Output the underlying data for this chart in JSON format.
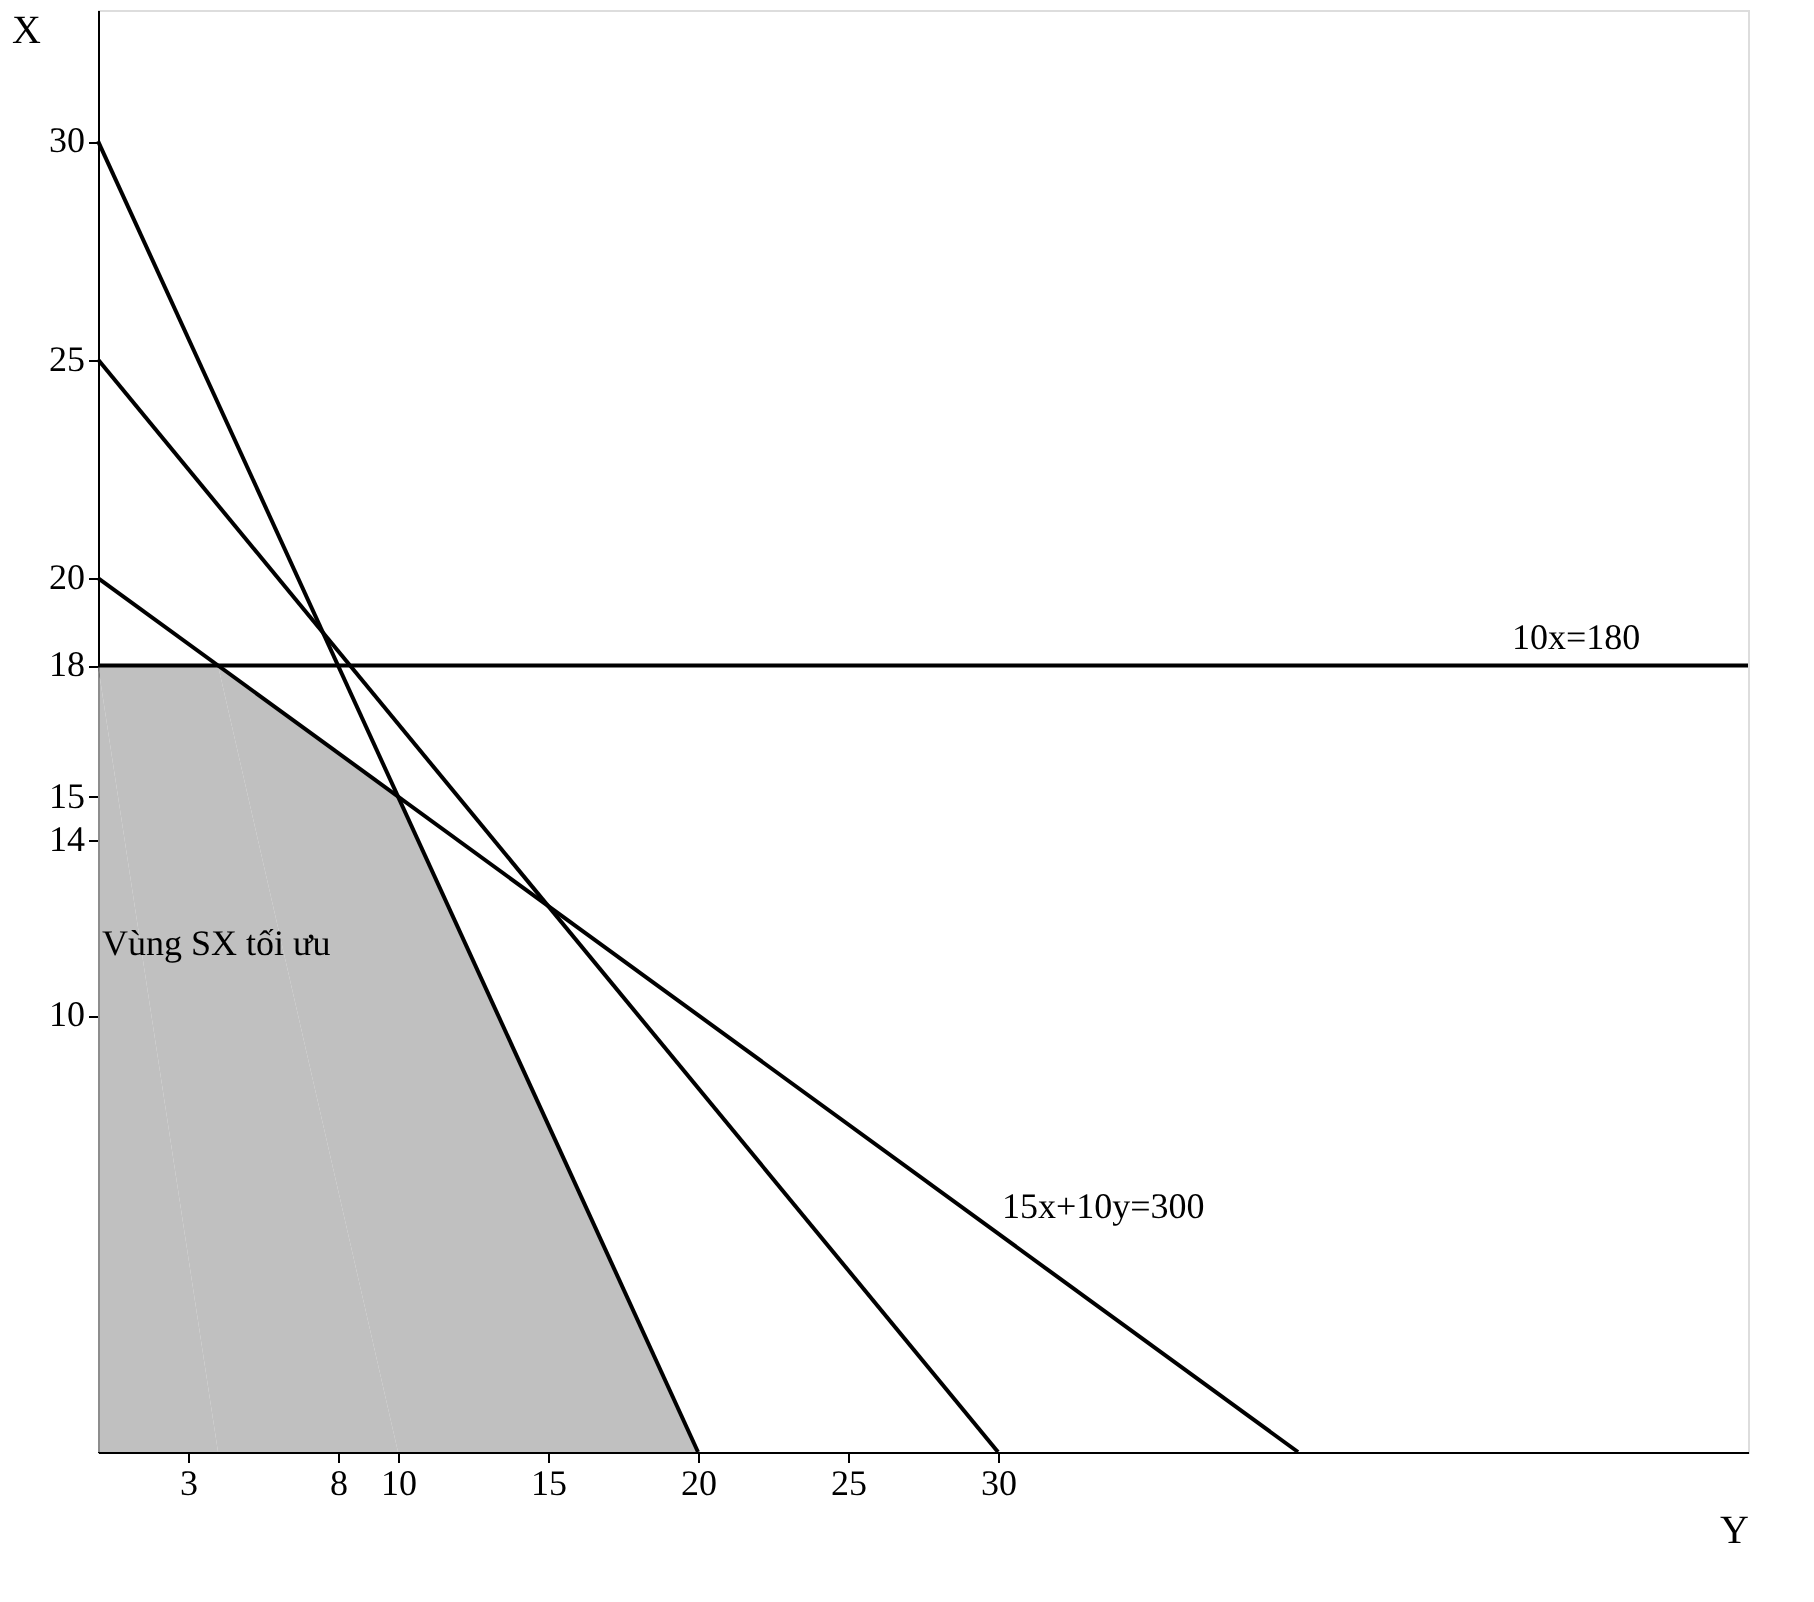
{
  "chart_data": {
    "type": "line",
    "xlabel": "Y",
    "ylabel": "X",
    "xlim": [
      0,
      55
    ],
    "ylim": [
      0,
      33
    ],
    "xticks": [
      3,
      8,
      10,
      15,
      20,
      25,
      30
    ],
    "yticks": [
      10,
      14,
      15,
      18,
      20,
      25,
      30
    ],
    "marker": "none",
    "line_style": "solid",
    "series": [
      {
        "type": "area",
        "color": "#b0b0b0",
        "x": [
          0,
          4,
          10,
          20
        ],
        "values": [
          18,
          18,
          15,
          0
        ]
      },
      {
        "color": "#000000",
        "x": [
          0,
          20
        ],
        "values": [
          30,
          0
        ]
      },
      {
        "color": "#000000",
        "x": [
          0,
          30
        ],
        "values": [
          25,
          0
        ]
      },
      {
        "color": "#000000",
        "x": [
          0,
          40
        ],
        "values": [
          20,
          0
        ]
      },
      {
        "color": "#000000",
        "x": [
          0,
          55
        ],
        "values": [
          18,
          18
        ]
      }
    ],
    "annotations": [
      {
        "text": "10x=180",
        "x": 47,
        "y": 18
      },
      {
        "text": "15x+10y=300",
        "x": 30,
        "y": 5
      },
      {
        "text": "Vùng SX tối ưu",
        "x": 0,
        "y": 11
      }
    ]
  }
}
